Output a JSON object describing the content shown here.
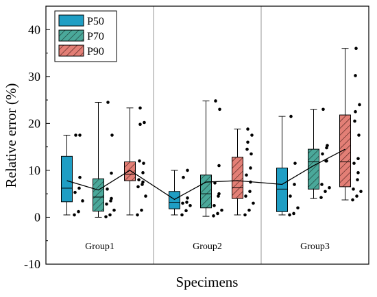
{
  "chart_data": {
    "type": "box",
    "xlabel": "Specimens",
    "ylabel": "Relative error (%)",
    "ylim": [
      -10,
      45
    ],
    "yticks": [
      -10,
      0,
      10,
      20,
      30,
      40
    ],
    "groups": [
      "Group1",
      "Group2",
      "Group3"
    ],
    "legend_position": "top-left",
    "series": [
      {
        "name": "P50",
        "color": "#1f9ec4",
        "hatch": "none",
        "boxes": [
          {
            "group": "Group1",
            "whisker_low": 0.5,
            "q1": 3.3,
            "median": 6.2,
            "q3": 13.0,
            "whisker_high": 17.5,
            "mean": 7.8,
            "points": [
              0.5,
              1.2,
              3.5,
              5.3,
              6.2,
              8.5,
              17.5,
              17.5
            ]
          },
          {
            "group": "Group2",
            "whisker_low": 0.5,
            "q1": 1.8,
            "median": 3.2,
            "q3": 5.5,
            "whisker_high": 10.0,
            "mean": 3.8,
            "points": [
              0.5,
              1.4,
              2.5,
              3.0,
              3.2,
              4.1,
              8.5,
              10.0
            ]
          },
          {
            "group": "Group3",
            "whisker_low": 0.5,
            "q1": 1.2,
            "median": 6.0,
            "q3": 10.5,
            "whisker_high": 21.5,
            "mean": 7.0,
            "points": [
              0.5,
              0.8,
              2.0,
              4.5,
              7.0,
              11.5,
              21.5
            ]
          }
        ]
      },
      {
        "name": "P70",
        "color": "#4aa89a",
        "hatch": "diagonal",
        "boxes": [
          {
            "group": "Group1",
            "whisker_low": 0,
            "q1": 1.3,
            "median": 4.3,
            "q3": 8.2,
            "whisker_high": 24.5,
            "mean": 5.8,
            "points": [
              0.1,
              0.5,
              1.5,
              2.8,
              3.5,
              4.0,
              6.0,
              9.4,
              17.5,
              24.5
            ]
          },
          {
            "group": "Group2",
            "whisker_low": 0.2,
            "q1": 2.0,
            "median": 5.0,
            "q3": 9.0,
            "whisker_high": 24.8,
            "mean": 7.5,
            "points": [
              0.3,
              0.8,
              1.5,
              2.5,
              4.5,
              5.0,
              7.3,
              11.0,
              23.0,
              24.8
            ]
          },
          {
            "group": "Group3",
            "whisker_low": 4.0,
            "q1": 6.0,
            "median": 11.8,
            "q3": 14.5,
            "whisker_high": 23.0,
            "mean": 11.0,
            "points": [
              4.2,
              5.5,
              6.3,
              7.0,
              12.0,
              12.0,
              13.5,
              14.8,
              15.3,
              23.0
            ]
          }
        ]
      },
      {
        "name": "P90",
        "color": "#e37f76",
        "hatch": "diagonal",
        "boxes": [
          {
            "group": "Group1",
            "whisker_low": 0.5,
            "q1": 7.8,
            "median": 9.2,
            "q3": 11.8,
            "whisker_high": 23.3,
            "mean": 10.0,
            "points": [
              0.5,
              1.5,
              4.5,
              6.5,
              7.0,
              7.5,
              8.0,
              9.5,
              11.5,
              12.0,
              19.8,
              20.2,
              23.3
            ]
          },
          {
            "group": "Group2",
            "whisker_low": 0.5,
            "q1": 4.0,
            "median": 6.3,
            "q3": 12.8,
            "whisker_high": 18.8,
            "mean": 7.8,
            "points": [
              0.5,
              1.5,
              3.0,
              4.5,
              5.5,
              7.5,
              9.0,
              10.5,
              13.5,
              14.5,
              16.0,
              17.5,
              18.8
            ]
          },
          {
            "group": "Group3",
            "whisker_low": 3.7,
            "q1": 6.5,
            "median": 11.8,
            "q3": 21.8,
            "whisker_high": 36.0,
            "mean": 14.5,
            "points": [
              3.7,
              4.5,
              5.5,
              6.0,
              8.0,
              9.5,
              11.5,
              12.5,
              17.5,
              20.5,
              22.5,
              24.0,
              30.2,
              36.0
            ]
          }
        ]
      }
    ]
  }
}
